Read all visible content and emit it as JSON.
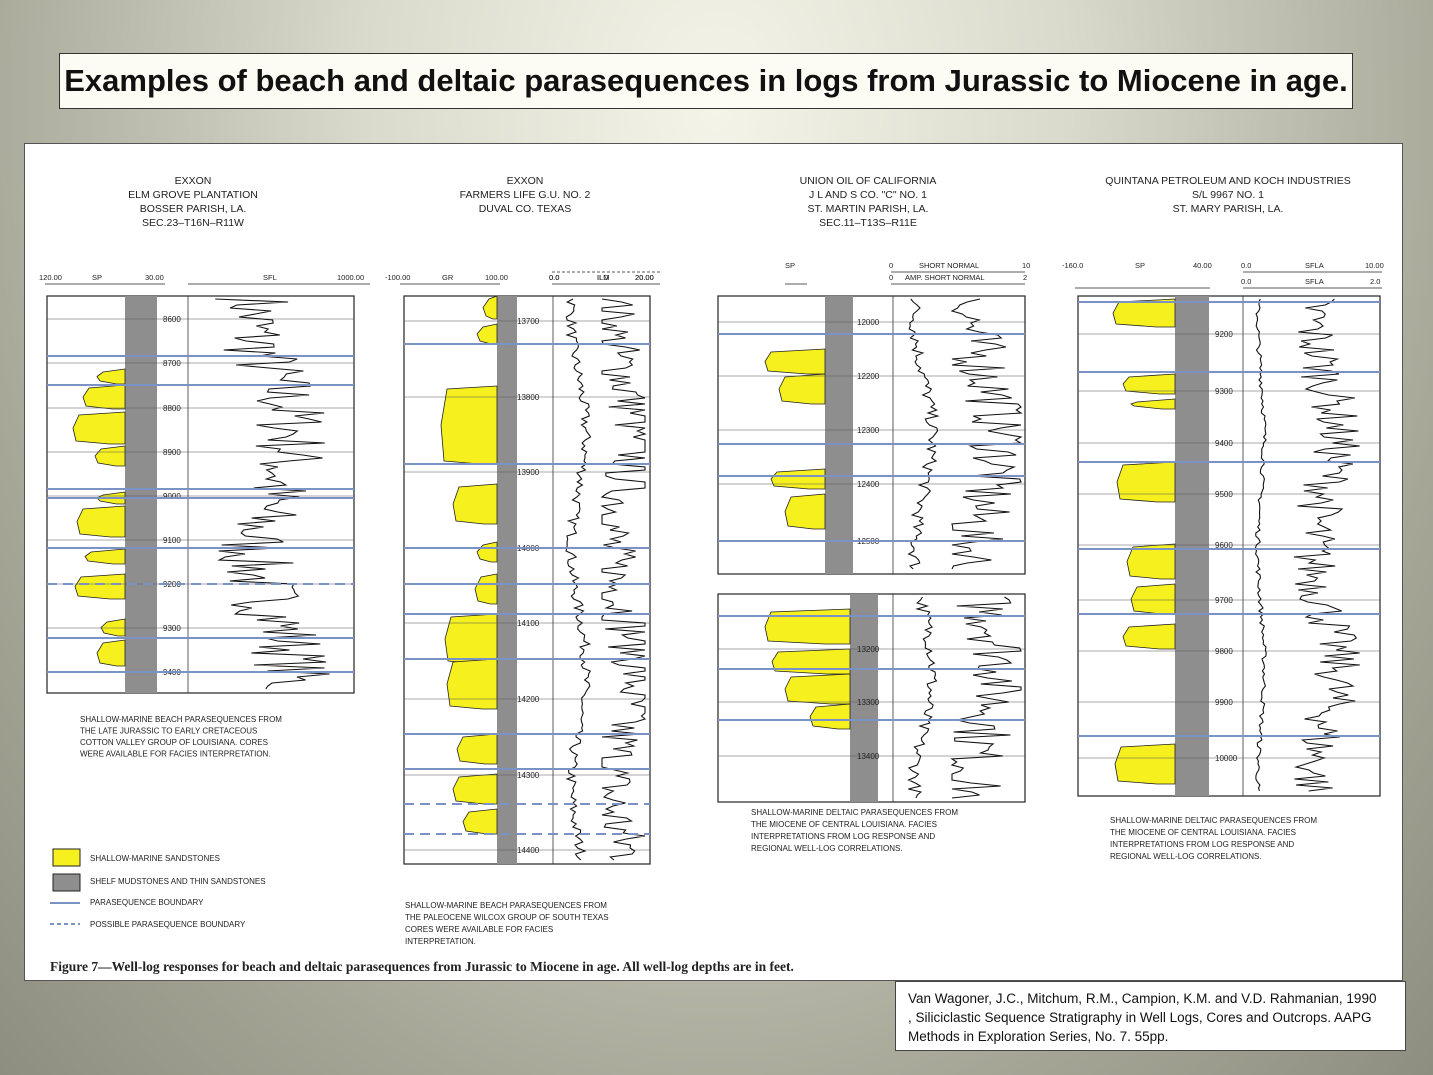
{
  "title": "Examples of beach and deltaic parasequences in logs from Jurassic to Miocene in age.",
  "figure": {
    "caption": "Figure 7—Well-log responses for beach and deltaic parasequences from Jurassic to Miocene in age. All well-log depths are in feet.",
    "colors": {
      "sandstone": "#f5f01e",
      "mudstone": "#8e8e8e",
      "boundary": "#7a93c4"
    },
    "wells": [
      {
        "header": [
          "EXXON",
          "ELM GROVE PLANTATION",
          "BOSSER PARISH, LA.",
          "SEC.23–T16N–R11W"
        ],
        "track_labels": {
          "left_min": "120.00",
          "left_name": "SP",
          "left_max": "30.00",
          "right_name": "SFL",
          "right_max": "1000.00"
        },
        "depths": [
          "8600",
          "8700",
          "8800",
          "8900",
          "9000",
          "9100",
          "9200",
          "9300",
          "9400"
        ],
        "description": [
          "SHALLOW-MARINE BEACH PARASEQUENCES FROM",
          "THE LATE JURASSIC TO EARLY CRETACEOUS",
          "COTTON VALLEY GROUP OF LOUISIANA. CORES",
          "WERE AVAILABLE FOR FACIES INTERPRETATION."
        ]
      },
      {
        "header": [
          "EXXON",
          "FARMERS LIFE G.U. NO. 2",
          "DUVAL CO. TEXAS"
        ],
        "track_labels": {
          "left_min": "-100.00",
          "left_name": "GR",
          "left_max": "100.00",
          "r1_min": "0.0",
          "r1_name": "ILD",
          "r1_max": "20.00",
          "r2_min": "0.0",
          "r2_name": "ILM",
          "r2_max": "20.00"
        },
        "depths": [
          "13700",
          "13800",
          "13900",
          "14000",
          "14100",
          "14200",
          "14300",
          "14400"
        ],
        "description": [
          "SHALLOW-MARINE BEACH PARASEQUENCES FROM",
          "THE PALEOCENE WILCOX GROUP OF SOUTH TEXAS",
          "CORES WERE AVAILABLE FOR FACIES",
          "INTERPRETATION."
        ]
      },
      {
        "header": [
          "UNION OIL OF CALIFORNIA",
          "J L AND S CO. \"C\" NO. 1",
          "ST. MARTIN PARISH, LA.",
          "SEC.11–T13S–R11E"
        ],
        "track_labels": {
          "left_name": "SP",
          "r1_min": "0",
          "r1_name": "SHORT NORMAL",
          "r1_max": "10",
          "r2_min": "0",
          "r2_name": "AMP. SHORT NORMAL",
          "r2_max": "2"
        },
        "depths": [
          "12000",
          "12200",
          "12300",
          "12400",
          "12500",
          "13200",
          "13300",
          "13400"
        ],
        "description": [
          "SHALLOW-MARINE DELTAIC PARASEQUENCES FROM",
          "THE MIOCENE OF CENTRAL LOUISIANA. FACIES",
          "INTERPRETATIONS FROM LOG RESPONSE AND",
          "REGIONAL WELL-LOG CORRELATIONS."
        ]
      },
      {
        "header": [
          "QUINTANA PETROLEUM AND KOCH INDUSTRIES",
          "S/L 9967 NO. 1",
          "ST. MARY PARISH, LA."
        ],
        "track_labels": {
          "left_min": "-160.0",
          "left_name": "SP",
          "left_max": "40.00",
          "r1_min": "0.0",
          "r1_name": "SFLA",
          "r1_max": "10.00",
          "r2_min": "0.0",
          "r2_name": "SFLA",
          "r2_max": "2.0"
        },
        "depths": [
          "9200",
          "9300",
          "9400",
          "9500",
          "9600",
          "9700",
          "9800",
          "9900",
          "10000"
        ],
        "description": [
          "SHALLOW-MARINE DELTAIC PARASEQUENCES FROM",
          "THE MIOCENE OF CENTRAL LOUISIANA. FACIES",
          "INTERPRETATIONS FROM LOG RESPONSE AND",
          "REGIONAL WELL-LOG CORRELATIONS."
        ]
      }
    ],
    "legend": [
      {
        "label": "SHALLOW-MARINE SANDSTONES",
        "kind": "sand-swatch"
      },
      {
        "label": "SHELF MUDSTONES AND THIN SANDSTONES",
        "kind": "mud-swatch"
      },
      {
        "label": "PARASEQUENCE BOUNDARY",
        "kind": "solid-line"
      },
      {
        "label": "POSSIBLE PARASEQUENCE BOUNDARY",
        "kind": "dashed-line"
      }
    ]
  },
  "citation": [
    "Van Wagoner, J.C., Mitchum, R.M., Campion, K.M. and V.D. Rahmanian, 1990",
    ", Siliciclastic Sequence Stratigraphy in Well Logs, Cores and Outcrops.  AAPG",
    " Methods in Exploration Series, No. 7.  55pp."
  ]
}
